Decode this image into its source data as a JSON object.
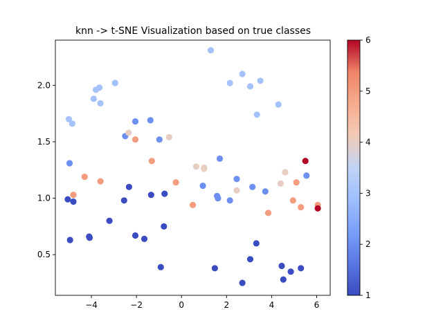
{
  "chart_data": {
    "type": "scatter",
    "title": "knn -> t-SNE Visualization based on true classes",
    "xlabel": "",
    "ylabel": "",
    "xlim": [
      -5.6,
      6.6
    ],
    "ylim": [
      0.14,
      2.4
    ],
    "xticks": [
      -4,
      -2,
      0,
      2,
      4,
      6
    ],
    "xtick_labels": [
      "−4",
      "−2",
      "0",
      "2",
      "4",
      "6"
    ],
    "yticks": [
      0.5,
      1.0,
      1.5,
      2.0
    ],
    "ytick_labels": [
      "0.5",
      "1.0",
      "1.5",
      "2.0"
    ],
    "grid": false,
    "colormap": "coolwarm",
    "colorbar": {
      "range": [
        1,
        6
      ],
      "ticks": [
        1,
        2,
        3,
        4,
        5,
        6
      ],
      "tick_labels": [
        "1",
        "2",
        "3",
        "4",
        "5",
        "6"
      ]
    },
    "points": [
      {
        "x": -5.05,
        "y": 0.99,
        "c": 1
      },
      {
        "x": -4.95,
        "y": 0.63,
        "c": 1
      },
      {
        "x": -4.8,
        "y": 0.97,
        "c": 1
      },
      {
        "x": -4.1,
        "y": 0.66,
        "c": 1
      },
      {
        "x": -4.08,
        "y": 0.65,
        "c": 1
      },
      {
        "x": -3.2,
        "y": 0.8,
        "c": 1
      },
      {
        "x": -2.55,
        "y": 0.98,
        "c": 1
      },
      {
        "x": -2.33,
        "y": 1.1,
        "c": 1
      },
      {
        "x": -2.05,
        "y": 0.67,
        "c": 1
      },
      {
        "x": -1.65,
        "y": 0.64,
        "c": 1
      },
      {
        "x": -1.35,
        "y": 1.03,
        "c": 1
      },
      {
        "x": -0.75,
        "y": 1.04,
        "c": 1
      },
      {
        "x": -0.78,
        "y": 0.75,
        "c": 1
      },
      {
        "x": -0.92,
        "y": 0.39,
        "c": 1
      },
      {
        "x": 1.48,
        "y": 0.38,
        "c": 1
      },
      {
        "x": 2.7,
        "y": 0.25,
        "c": 1
      },
      {
        "x": 3.05,
        "y": 0.46,
        "c": 1
      },
      {
        "x": 3.32,
        "y": 0.6,
        "c": 1
      },
      {
        "x": 4.45,
        "y": 0.4,
        "c": 1
      },
      {
        "x": 4.52,
        "y": 0.28,
        "c": 1
      },
      {
        "x": 4.85,
        "y": 0.35,
        "c": 1
      },
      {
        "x": 5.3,
        "y": 0.38,
        "c": 1
      },
      {
        "x": -4.97,
        "y": 1.31,
        "c": 2
      },
      {
        "x": -2.5,
        "y": 1.55,
        "c": 2
      },
      {
        "x": -2.05,
        "y": 1.68,
        "c": 2
      },
      {
        "x": -1.38,
        "y": 1.69,
        "c": 2
      },
      {
        "x": -0.98,
        "y": 1.52,
        "c": 2
      },
      {
        "x": 0.95,
        "y": 1.11,
        "c": 2
      },
      {
        "x": 1.58,
        "y": 1.02,
        "c": 2
      },
      {
        "x": 1.62,
        "y": 1.0,
        "c": 2
      },
      {
        "x": 1.7,
        "y": 1.35,
        "c": 2
      },
      {
        "x": 2.15,
        "y": 0.98,
        "c": 2
      },
      {
        "x": 2.45,
        "y": 1.17,
        "c": 2
      },
      {
        "x": 3.15,
        "y": 1.1,
        "c": 2
      },
      {
        "x": 3.72,
        "y": 1.06,
        "c": 2
      },
      {
        "x": 5.55,
        "y": 1.2,
        "c": 2
      },
      {
        "x": -5.0,
        "y": 1.7,
        "c": 3
      },
      {
        "x": -4.85,
        "y": 1.66,
        "c": 3
      },
      {
        "x": -3.9,
        "y": 1.88,
        "c": 3
      },
      {
        "x": -3.8,
        "y": 1.96,
        "c": 3
      },
      {
        "x": -3.65,
        "y": 1.98,
        "c": 3
      },
      {
        "x": -3.6,
        "y": 1.84,
        "c": 3
      },
      {
        "x": -2.95,
        "y": 2.02,
        "c": 3
      },
      {
        "x": 1.3,
        "y": 2.31,
        "c": 3
      },
      {
        "x": 2.15,
        "y": 2.02,
        "c": 3
      },
      {
        "x": 2.7,
        "y": 2.1,
        "c": 3
      },
      {
        "x": 3.05,
        "y": 1.99,
        "c": 3
      },
      {
        "x": 3.35,
        "y": 1.74,
        "c": 3
      },
      {
        "x": 3.5,
        "y": 2.04,
        "c": 3
      },
      {
        "x": 4.3,
        "y": 1.83,
        "c": 3
      },
      {
        "x": -2.35,
        "y": 1.58,
        "c": 4
      },
      {
        "x": -0.55,
        "y": 1.54,
        "c": 4
      },
      {
        "x": 0.65,
        "y": 1.28,
        "c": 4
      },
      {
        "x": 1.0,
        "y": 1.27,
        "c": 4
      },
      {
        "x": 1.0,
        "y": 1.26,
        "c": 4
      },
      {
        "x": 2.45,
        "y": 1.07,
        "c": 4
      },
      {
        "x": 4.4,
        "y": 1.13,
        "c": 4
      },
      {
        "x": 4.6,
        "y": 1.23,
        "c": 4
      },
      {
        "x": -4.8,
        "y": 1.03,
        "c": 5
      },
      {
        "x": -4.3,
        "y": 1.19,
        "c": 5
      },
      {
        "x": -3.6,
        "y": 1.15,
        "c": 5
      },
      {
        "x": -2.05,
        "y": 1.52,
        "c": 5
      },
      {
        "x": -1.32,
        "y": 1.33,
        "c": 5
      },
      {
        "x": -0.25,
        "y": 1.14,
        "c": 5
      },
      {
        "x": 0.5,
        "y": 0.94,
        "c": 5
      },
      {
        "x": 3.85,
        "y": 0.87,
        "c": 5
      },
      {
        "x": 4.95,
        "y": 0.98,
        "c": 5
      },
      {
        "x": 5.1,
        "y": 1.14,
        "c": 5
      },
      {
        "x": 5.3,
        "y": 0.92,
        "c": 5
      },
      {
        "x": 6.05,
        "y": 0.94,
        "c": 5
      },
      {
        "x": 6.05,
        "y": 0.91,
        "c": 6
      },
      {
        "x": 5.5,
        "y": 1.33,
        "c": 6
      }
    ]
  }
}
